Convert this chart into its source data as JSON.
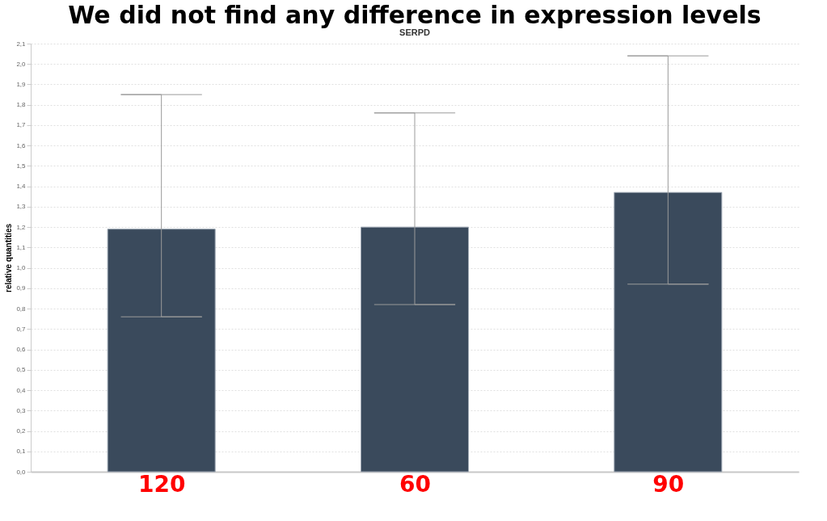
{
  "chart_data": {
    "type": "bar",
    "title": "We did not find any difference in expression levels",
    "subtitle": "SERPD",
    "ylabel": "relative quantities",
    "categories": [
      "120",
      "60",
      "90"
    ],
    "values": [
      1.19,
      1.2,
      1.37
    ],
    "errors": [
      [
        0.76,
        1.85
      ],
      [
        0.82,
        1.76
      ],
      [
        0.92,
        2.04
      ]
    ],
    "color": "#3a4a5c",
    "ylim": [
      0,
      2.1
    ],
    "yticks": [
      {
        "value": 0,
        "label": "0,0"
      },
      {
        "value": 0.1,
        "label": "0,1"
      },
      {
        "value": 0.2,
        "label": "0,2"
      },
      {
        "value": 0.3,
        "label": "0,3"
      },
      {
        "value": 0.4,
        "label": "0,4"
      },
      {
        "value": 0.5,
        "label": "0,5"
      },
      {
        "value": 0.6,
        "label": "0,6"
      },
      {
        "value": 0.7,
        "label": "0,7"
      },
      {
        "value": 0.8,
        "label": "0,8"
      },
      {
        "value": 0.9,
        "label": "0,9"
      },
      {
        "value": 1.0,
        "label": "1,0"
      },
      {
        "value": 1.1,
        "label": "1,1"
      },
      {
        "value": 1.2,
        "label": "1,2"
      },
      {
        "value": 1.3,
        "label": "1,3"
      },
      {
        "value": 1.4,
        "label": "1,4"
      },
      {
        "value": 1.5,
        "label": "1,5"
      },
      {
        "value": 1.6,
        "label": "1,6"
      },
      {
        "value": 1.7,
        "label": "1,7"
      },
      {
        "value": 1.8,
        "label": "1,8"
      },
      {
        "value": 1.9,
        "label": "1,9"
      },
      {
        "value": 2.0,
        "label": "2,0"
      },
      {
        "value": 2.1,
        "label": "2,1"
      }
    ],
    "grid": "y"
  }
}
